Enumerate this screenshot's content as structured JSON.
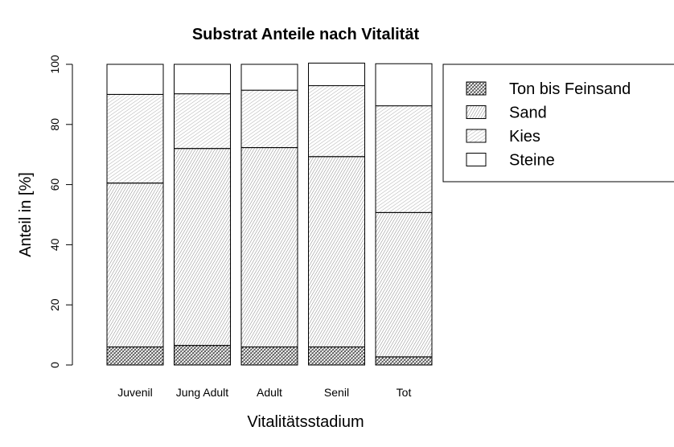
{
  "chart_data": {
    "type": "bar",
    "stacked": true,
    "title": "Substrat Anteile nach Vitalität",
    "xlabel": "Vitalitätsstadium",
    "ylabel": "Anteil in [%]",
    "ylim": [
      0,
      100
    ],
    "yticks": [
      "0",
      "20",
      "40",
      "60",
      "80",
      "100"
    ],
    "categories": [
      "Juvenil",
      "Jung Adult",
      "Adult",
      "Senil",
      "Tot"
    ],
    "series": [
      {
        "name": "Ton bis Feinsand",
        "values": [
          6,
          6.5,
          6,
          6,
          2.7
        ]
      },
      {
        "name": "Sand",
        "values": [
          54.5,
          65.5,
          66.3,
          63.3,
          48
        ]
      },
      {
        "name": "Kies",
        "values": [
          29.5,
          18.2,
          19.1,
          23.6,
          35.5
        ]
      },
      {
        "name": "Steine",
        "values": [
          10,
          9.8,
          8.6,
          7.5,
          14
        ]
      }
    ],
    "legend_position": "top-right",
    "fill_style": "hatched black and white",
    "grid": false
  }
}
